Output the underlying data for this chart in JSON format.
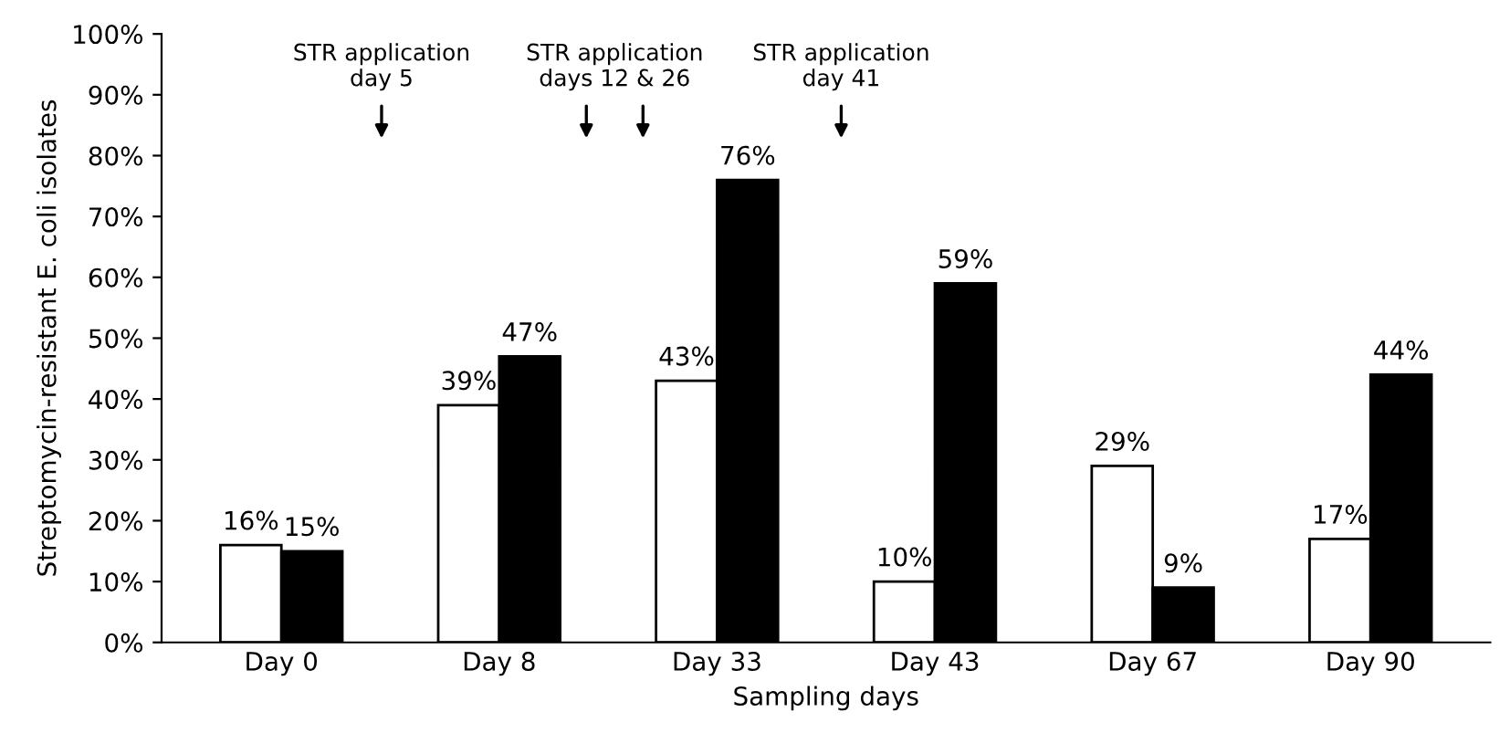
{
  "chart_data": {
    "type": "bar",
    "xlabel": "Sampling days",
    "ylabel": "Streptomycin-resistant E. coli isolates",
    "categories": [
      "Day 0",
      "Day 8",
      "Day 33",
      "Day 43",
      "Day 67",
      "Day 90"
    ],
    "series": [
      {
        "color": "#ffffff",
        "values": [
          16,
          39,
          43,
          10,
          29,
          17
        ],
        "value_labels": [
          "16%",
          "39%",
          "43%",
          "10%",
          "29%",
          "17%"
        ]
      },
      {
        "color": "#000000",
        "values": [
          15,
          47,
          76,
          59,
          9,
          44
        ],
        "value_labels": [
          "15%",
          "47%",
          "76%",
          "59%",
          "9%",
          "44%"
        ]
      }
    ],
    "ylim": [
      0,
      100
    ],
    "yticks": [
      {
        "value": 0,
        "label": "0%"
      },
      {
        "value": 10,
        "label": "10%"
      },
      {
        "value": 20,
        "label": "20%"
      },
      {
        "value": 30,
        "label": "30%"
      },
      {
        "value": 40,
        "label": "40%"
      },
      {
        "value": 50,
        "label": "50%"
      },
      {
        "value": 60,
        "label": "60%"
      },
      {
        "value": 70,
        "label": "70%"
      },
      {
        "value": 80,
        "label": "80%"
      },
      {
        "value": 90,
        "label": "90%"
      },
      {
        "value": 100,
        "label": "100%"
      }
    ],
    "annotations": [
      "STR application\nday 5",
      "STR application\ndays 12 & 26",
      "STR application\nday 41"
    ],
    "grid": false,
    "legend": false
  }
}
